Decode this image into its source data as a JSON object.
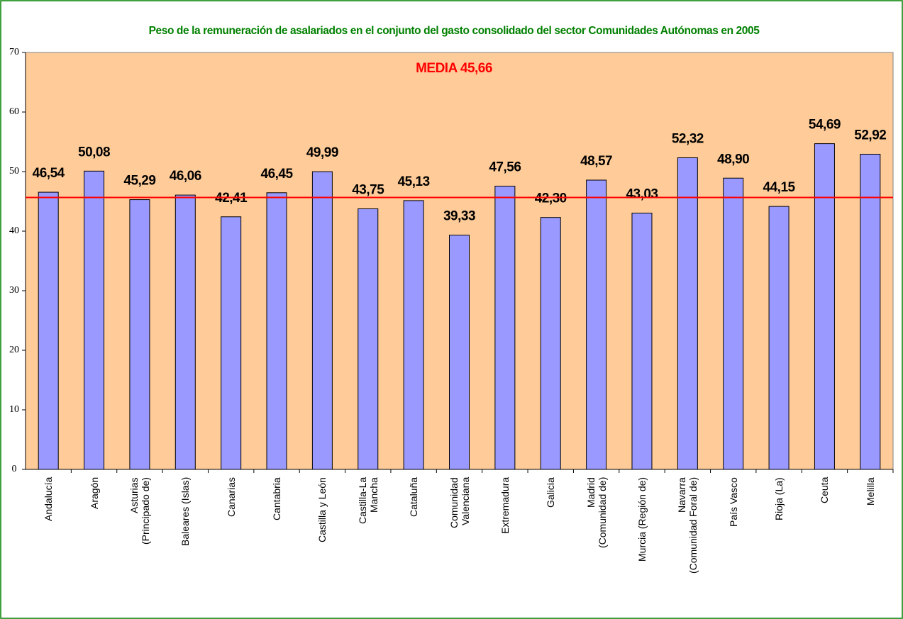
{
  "chart_data": {
    "type": "bar",
    "title": "Peso de la remuneración de asalariados en el conjunto del gasto consolidado del sector Comunidades Autónomas en 2005",
    "categories": [
      "Andalucía",
      "Aragón",
      "Asturias\n(Principado de)",
      "Baleares (Islas)",
      "Canarias",
      "Cantabria",
      "Castilla y León",
      "Castilla-La\nMancha",
      "Cataluña",
      "Comunidad\nValenciana",
      "Extremadura",
      "Galicia",
      "Madrid\n(Comunidad de)",
      "Murcia (Región de)",
      "Navarra\n(Comunidad Foral de)",
      "País Vasco",
      "Rioja (La)",
      "Ceuta",
      "Melilla"
    ],
    "values": [
      46.54,
      50.08,
      45.29,
      46.06,
      42.41,
      46.45,
      49.99,
      43.75,
      45.13,
      39.33,
      47.56,
      42.3,
      48.57,
      43.03,
      52.32,
      48.9,
      44.15,
      54.69,
      52.92
    ],
    "value_labels": [
      "46,54",
      "50,08",
      "45,29",
      "46,06",
      "42,41",
      "46,45",
      "49,99",
      "43,75",
      "45,13",
      "39,33",
      "47,56",
      "42,30",
      "48,57",
      "43,03",
      "52,32",
      "48,90",
      "44,15",
      "54,69",
      "52,92"
    ],
    "color": "#9999ff",
    "mean_line": {
      "value": 45.66,
      "label": "MEDIA 45,66",
      "color": "#ff0000"
    },
    "ylim": [
      0,
      70
    ],
    "yticks": [
      0,
      10,
      20,
      30,
      40,
      50,
      60,
      70
    ],
    "grid": false,
    "plot_background": "#ffcc99"
  }
}
